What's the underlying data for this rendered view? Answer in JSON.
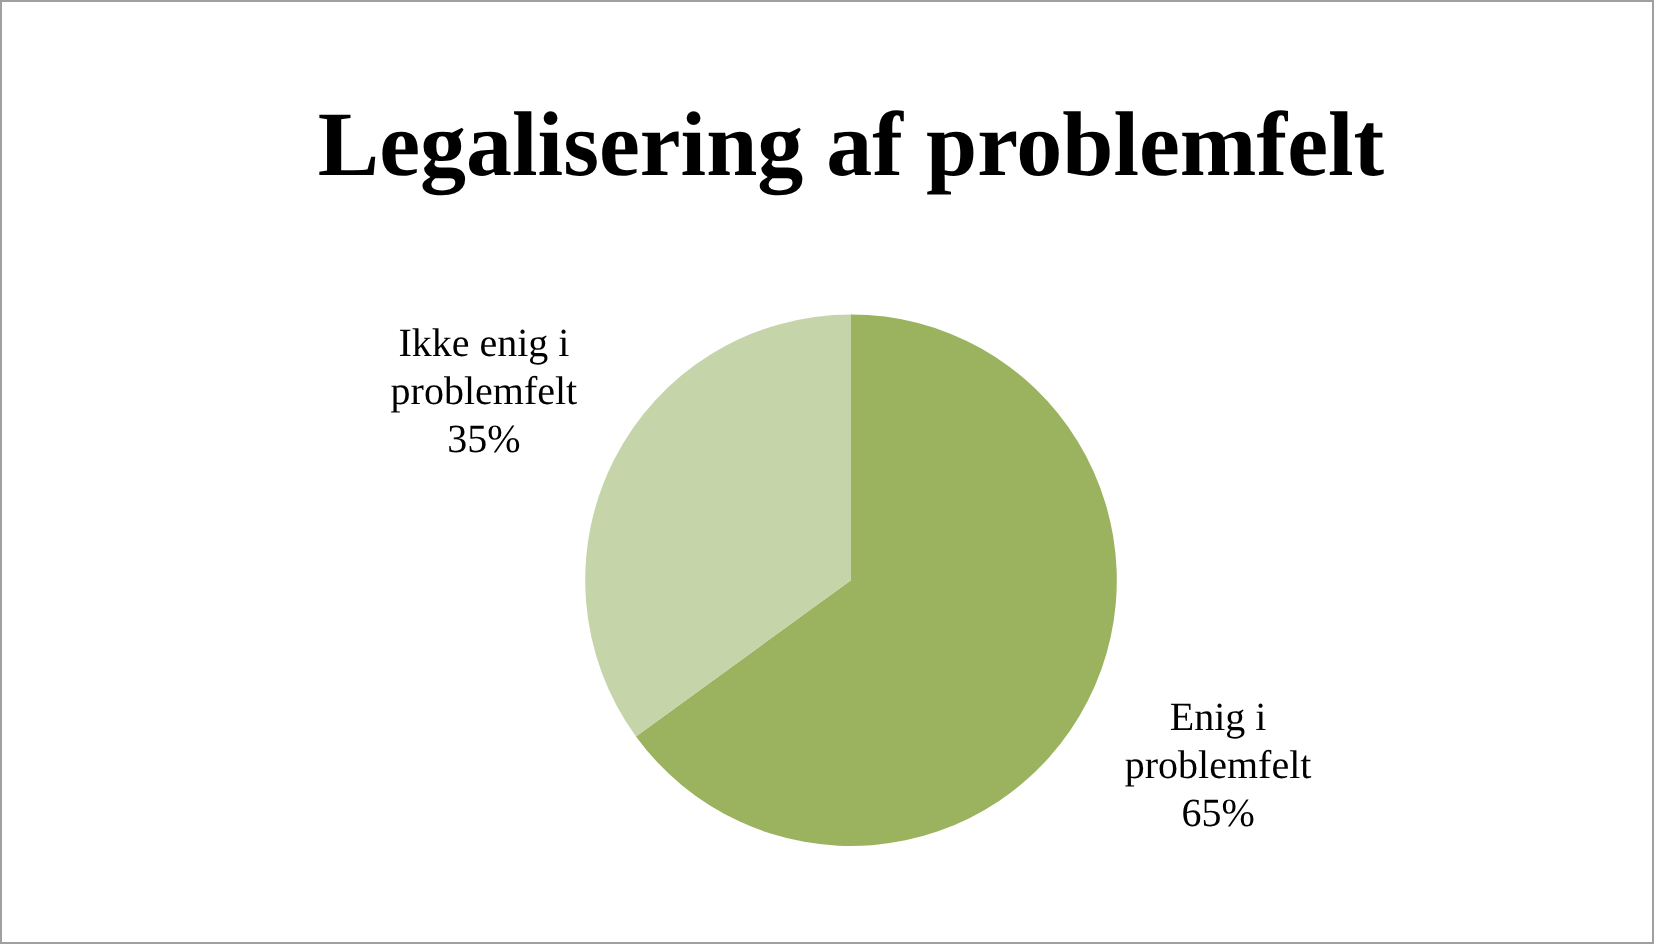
{
  "chart_data": {
    "type": "pie",
    "title": "Legalisering af problemfelt",
    "categories": [
      "Enig i problemfelt",
      "Ikke enig i problemfelt"
    ],
    "values": [
      65,
      35
    ],
    "colors": [
      "#9bb25f",
      "#c5d5a9"
    ],
    "value_labels": [
      "65%",
      "35%"
    ],
    "legend": false
  }
}
